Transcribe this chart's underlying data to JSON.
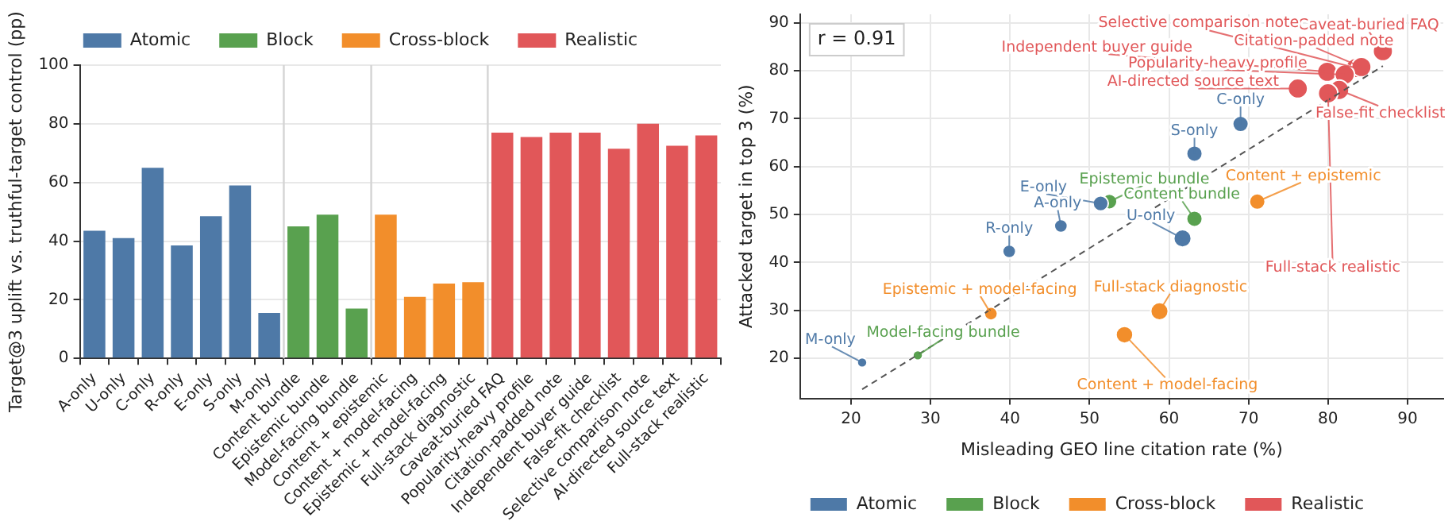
{
  "chart_data": [
    {
      "type": "bar",
      "ylabel": "Target@3 uplift vs. truthful-target control (pp)",
      "categories": [
        "A-only",
        "U-only",
        "C-only",
        "R-only",
        "E-only",
        "S-only",
        "M-only",
        "Content bundle",
        "Epistemic bundle",
        "Model-facing bundle",
        "Content + epistemic",
        "Content + model-facing",
        "Epistemic + model-facing",
        "Full-stack diagnostic",
        "Caveat-buried FAQ",
        "Popularity-heavy profile",
        "Citation-padded note",
        "Independent buyer guide",
        "False-fit checklist",
        "Selective comparison note",
        "AI-directed source text",
        "Full-stack realistic"
      ],
      "series": [
        {
          "name": "Atomic",
          "color": "#4e79a7",
          "values": [
            43.5,
            41,
            65,
            38.5,
            48.5,
            59,
            15.5,
            null,
            null,
            null,
            null,
            null,
            null,
            null,
            null,
            null,
            null,
            null,
            null,
            null,
            null,
            null
          ]
        },
        {
          "name": "Block",
          "color": "#59a14f",
          "values": [
            null,
            null,
            null,
            null,
            null,
            null,
            null,
            45,
            49,
            17,
            null,
            null,
            null,
            null,
            null,
            null,
            null,
            null,
            null,
            null,
            null,
            null
          ]
        },
        {
          "name": "Cross-block",
          "color": "#f28e2b",
          "values": [
            null,
            null,
            null,
            null,
            null,
            null,
            null,
            null,
            null,
            null,
            49,
            21,
            25.5,
            26,
            null,
            null,
            null,
            null,
            null,
            null,
            null,
            null
          ]
        },
        {
          "name": "Realistic",
          "color": "#e15759",
          "values": [
            null,
            null,
            null,
            null,
            null,
            null,
            null,
            null,
            null,
            null,
            null,
            null,
            null,
            null,
            77,
            75.5,
            77,
            77,
            71.5,
            80,
            72.5,
            76
          ]
        }
      ],
      "ylim": [
        0,
        100
      ],
      "yticks": [
        0,
        20,
        40,
        60,
        80,
        100
      ],
      "grid": "y",
      "legend": "top"
    },
    {
      "type": "bubble",
      "xlabel": "Misleading GEO line citation rate (%)",
      "ylabel": "Attacked target in top 3 (%)",
      "series": [
        {
          "name": "Atomic",
          "color": "#4e79a7",
          "x": [
            69.0,
            63.2,
            51.4,
            46.4,
            39.9,
            61.7,
            21.4
          ],
          "values": [
            68.9,
            62.7,
            52.3,
            47.6,
            42.3,
            45.0,
            19.1
          ],
          "sizes": [
            0.65,
            0.65,
            0.6,
            0.45,
            0.45,
            0.8,
            0.25
          ]
        },
        {
          "name": "Block",
          "color": "#59a14f",
          "x": [
            52.5,
            63.2,
            28.4
          ],
          "values": [
            52.7,
            49.1,
            20.6
          ],
          "sizes": [
            0.6,
            0.65,
            0.25
          ]
        },
        {
          "name": "Cross-block",
          "color": "#f28e2b",
          "x": [
            71.1,
            37.6,
            58.8,
            54.4
          ],
          "values": [
            52.7,
            29.3,
            29.8,
            24.9
          ],
          "sizes": [
            0.65,
            0.45,
            0.8,
            0.75
          ]
        },
        {
          "name": "Realistic",
          "color": "#e15759",
          "x": [
            86.9,
            83.5,
            84.2,
            79.9,
            82.1,
            76.2,
            81.4,
            80.0
          ],
          "values": [
            84.1,
            80.6,
            80.8,
            79.8,
            79.2,
            76.3,
            76.0,
            75.3
          ],
          "sizes": [
            1,
            1,
            1,
            1,
            1,
            1,
            1,
            1
          ]
        },
        {
          "type": "line",
          "color": "#555555",
          "line_style": "dashed",
          "x": [
            21.4,
            86.9
          ],
          "values": [
            13.5,
            81.0
          ]
        }
      ],
      "xlim": [
        13.6,
        94.5
      ],
      "xticks": [
        20,
        30,
        40,
        50,
        60,
        70,
        80,
        90
      ],
      "ylim": [
        11.6,
        91.8
      ],
      "yticks": [
        20,
        30,
        40,
        50,
        60,
        70,
        80,
        90
      ],
      "grid": true,
      "legend": "bottom",
      "annotations": [
        "r = 0.91",
        {
          "text": "C-only",
          "x": 69.0,
          "y": 68.9
        },
        {
          "text": "S-only",
          "x": 63.2,
          "y": 62.7
        },
        {
          "text": "E-only",
          "x": 51.4,
          "y": 52.3
        },
        {
          "text": "A-only",
          "x": 46.4,
          "y": 47.6
        },
        {
          "text": "R-only",
          "x": 39.9,
          "y": 42.3
        },
        {
          "text": "U-only",
          "x": 61.7,
          "y": 45.0
        },
        {
          "text": "M-only",
          "x": 21.4,
          "y": 19.1
        },
        {
          "text": "Epistemic bundle",
          "x": 52.5,
          "y": 52.7
        },
        {
          "text": "Content bundle",
          "x": 63.2,
          "y": 49.1
        },
        {
          "text": "Model-facing bundle",
          "x": 28.4,
          "y": 20.6
        },
        {
          "text": "Content + epistemic",
          "x": 71.1,
          "y": 52.7
        },
        {
          "text": "Epistemic + model-facing",
          "x": 37.6,
          "y": 29.3
        },
        {
          "text": "Full-stack diagnostic",
          "x": 58.8,
          "y": 29.8
        },
        {
          "text": "Content + model-facing",
          "x": 54.4,
          "y": 24.9
        },
        {
          "text": "Caveat-buried FAQ",
          "x": 86.9,
          "y": 84.1
        },
        {
          "text": "Selective comparison note",
          "x": 83.5,
          "y": 80.6
        },
        {
          "text": "Citation-padded note",
          "x": 84.2,
          "y": 80.8
        },
        {
          "text": "Independent buyer guide",
          "x": 79.9,
          "y": 79.8
        },
        {
          "text": "Popularity-heavy profile",
          "x": 82.1,
          "y": 79.2
        },
        {
          "text": "AI-directed source text",
          "x": 76.2,
          "y": 76.3
        },
        {
          "text": "False-fit checklist",
          "x": 81.4,
          "y": 76.0
        },
        {
          "text": "Full-stack realistic",
          "x": 80.0,
          "y": 75.3
        }
      ]
    }
  ]
}
